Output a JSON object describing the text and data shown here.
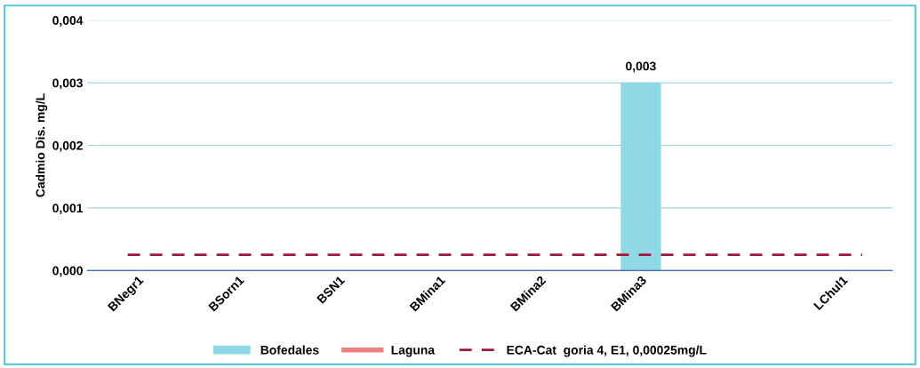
{
  "chart_data": {
    "type": "bar",
    "ylabel": "Cadmio Dis. mg/L",
    "categories": [
      "BNegr1",
      "BSorn1",
      "BSN1",
      "BMina1",
      "BMina2",
      "BMina3",
      null,
      "LChul1"
    ],
    "series": [
      {
        "name": "Bofedales",
        "color": "#8fd8e6",
        "values": [
          0,
          0,
          0,
          0,
          0,
          0.003,
          null,
          null
        ],
        "value_labels": [
          null,
          null,
          null,
          null,
          null,
          "0,003",
          null,
          null
        ]
      },
      {
        "name": "Laguna",
        "type": "line",
        "color": "#f08080",
        "values": [
          null,
          null,
          null,
          null,
          null,
          null,
          null,
          null
        ]
      }
    ],
    "ref_lines": [
      {
        "axis": "y",
        "value": 0.00025,
        "label": "ECA-Cat  goria 4, E1, 0,00025mg/L",
        "color": "#a01840",
        "line_style": "dashed"
      }
    ],
    "ylim": [
      0,
      0.004
    ],
    "yticks": [
      {
        "value": 0,
        "label": "0,000"
      },
      {
        "value": 0.001,
        "label": "0,001"
      },
      {
        "value": 0.002,
        "label": "0,002"
      },
      {
        "value": 0.003,
        "label": "0,003"
      },
      {
        "value": 0.004,
        "label": "0,004"
      }
    ],
    "grid": "y",
    "legend": "bottom"
  }
}
